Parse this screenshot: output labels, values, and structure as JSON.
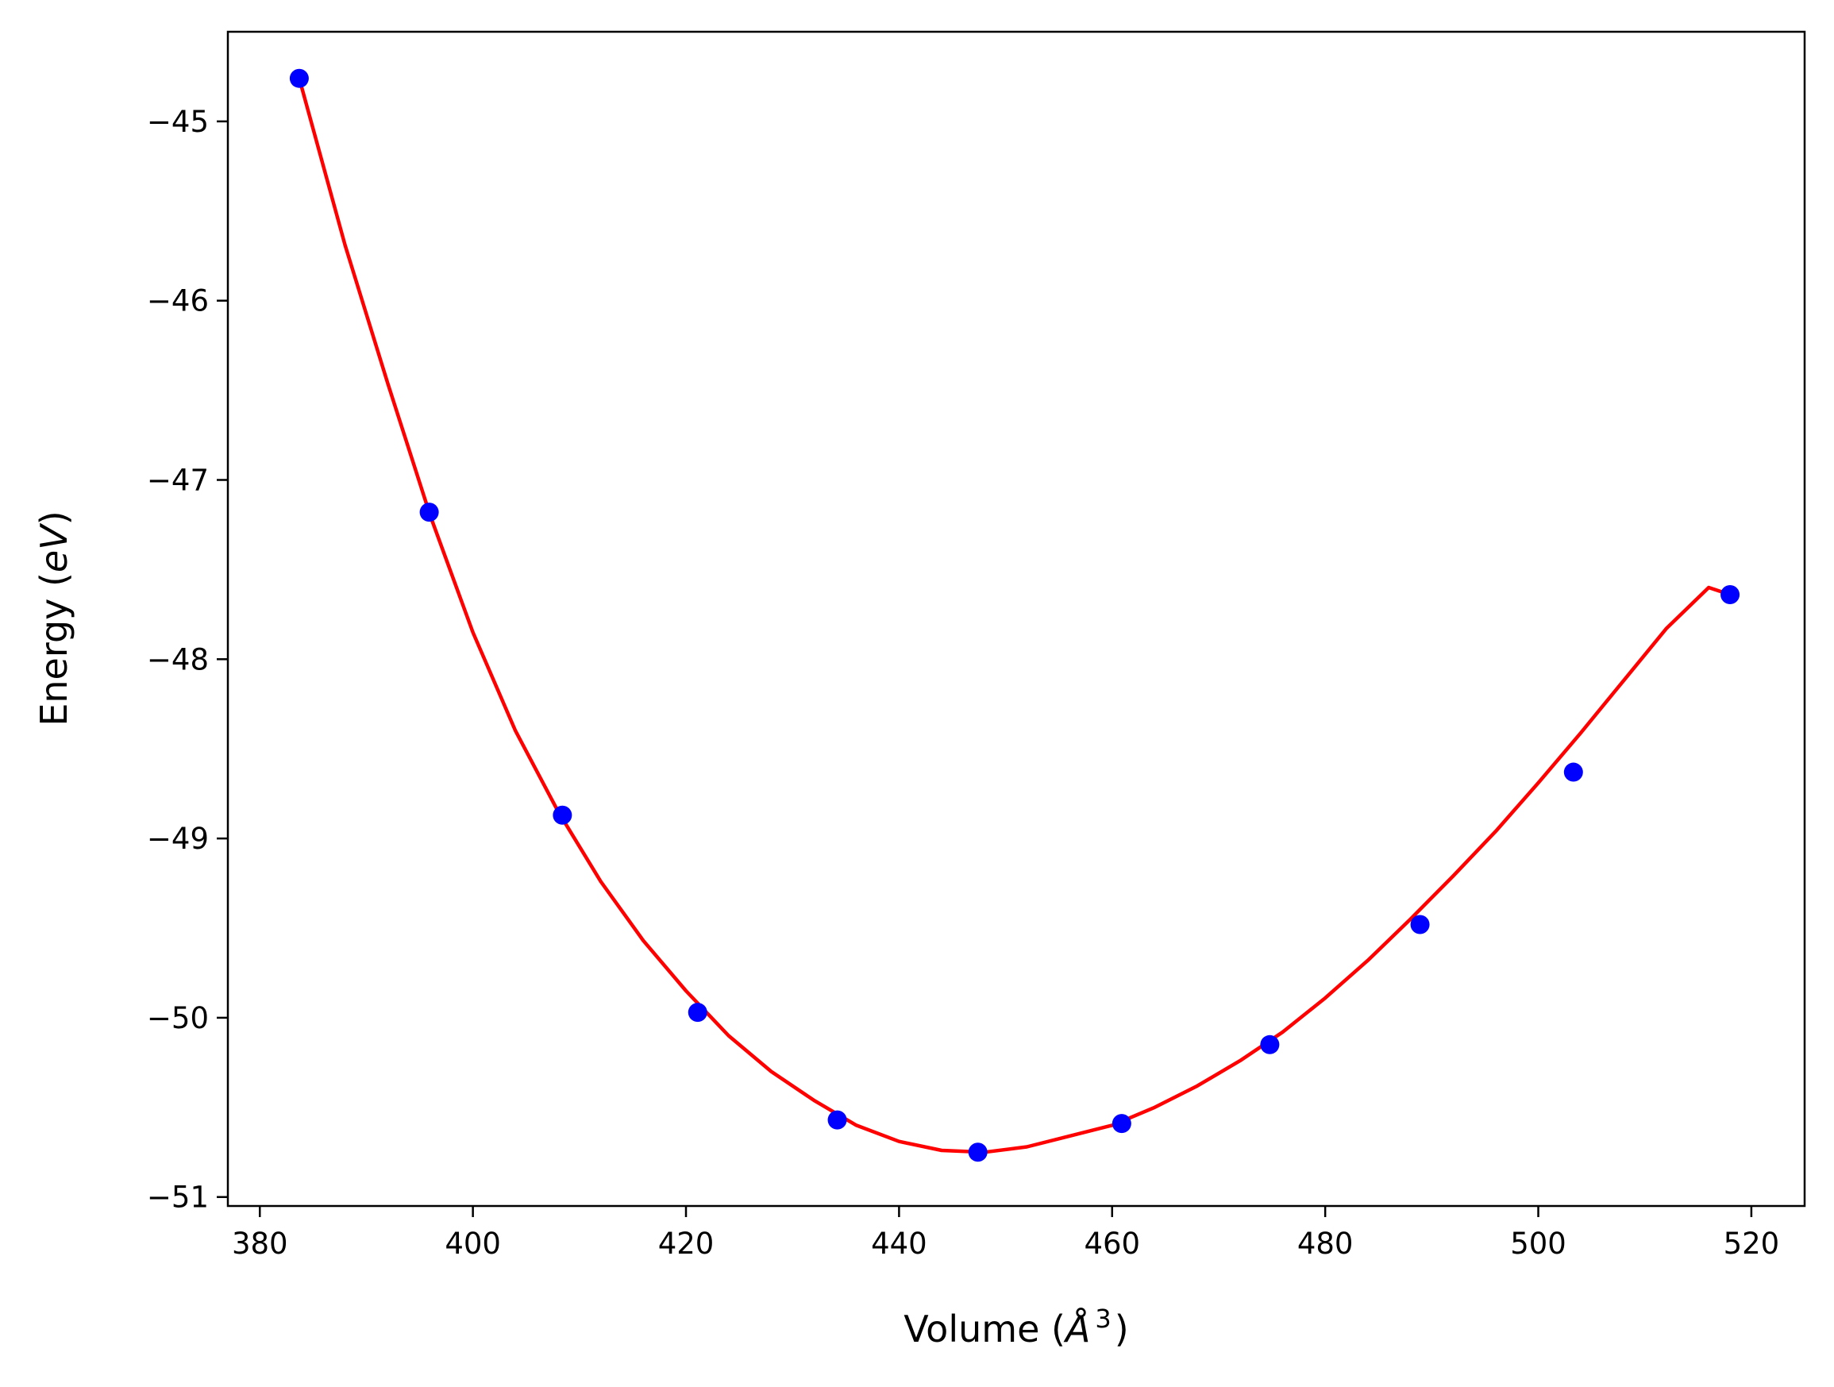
{
  "chart_data": {
    "type": "scatter",
    "title": "",
    "xlabel_main": "Volume (",
    "xlabel_unit": "Å",
    "xlabel_exp": "3",
    "xlabel_close": ")",
    "ylabel_main": "Energy (",
    "ylabel_unit": "eV",
    "ylabel_close": ")",
    "xlim": [
      377,
      525
    ],
    "ylim": [
      -51.05,
      -44.5
    ],
    "xticks": [
      380,
      400,
      420,
      440,
      460,
      480,
      500,
      520
    ],
    "xtick_labels": [
      "380",
      "400",
      "420",
      "440",
      "460",
      "480",
      "500",
      "520"
    ],
    "yticks": [
      -45,
      -46,
      -47,
      -48,
      -49,
      -50,
      -51
    ],
    "ytick_labels": [
      "−45",
      "−46",
      "−47",
      "−48",
      "−49",
      "−50",
      "−51"
    ],
    "grid": false,
    "series": [
      {
        "kind": "points",
        "color": "#0000ff",
        "x": [
          383.7,
          395.9,
          408.4,
          421.1,
          434.2,
          447.4,
          460.9,
          474.8,
          488.9,
          503.3,
          518.0
        ],
        "y": [
          -44.76,
          -47.18,
          -48.87,
          -49.97,
          -50.57,
          -50.75,
          -50.59,
          -50.15,
          -49.48,
          -48.63,
          -47.64
        ]
      },
      {
        "kind": "fit-curve",
        "color": "#ff0000",
        "x": [
          383.7,
          388,
          392,
          396,
          400,
          404,
          408,
          412,
          416,
          420,
          424,
          428,
          432,
          436,
          440,
          444,
          448,
          452,
          456,
          460,
          464,
          468,
          472,
          476,
          480,
          484,
          488,
          492,
          496,
          500,
          504,
          508,
          512,
          516,
          518.0
        ],
        "y": [
          -44.76,
          -45.69,
          -46.46,
          -47.2,
          -47.85,
          -48.4,
          -48.85,
          -49.24,
          -49.57,
          -49.85,
          -50.1,
          -50.3,
          -50.46,
          -50.6,
          -50.69,
          -50.74,
          -50.75,
          -50.72,
          -50.66,
          -50.6,
          -50.5,
          -50.38,
          -50.24,
          -50.08,
          -49.89,
          -49.68,
          -49.45,
          -49.21,
          -48.96,
          -48.69,
          -48.41,
          -48.12,
          -47.83,
          -47.6,
          -47.64
        ]
      }
    ]
  }
}
